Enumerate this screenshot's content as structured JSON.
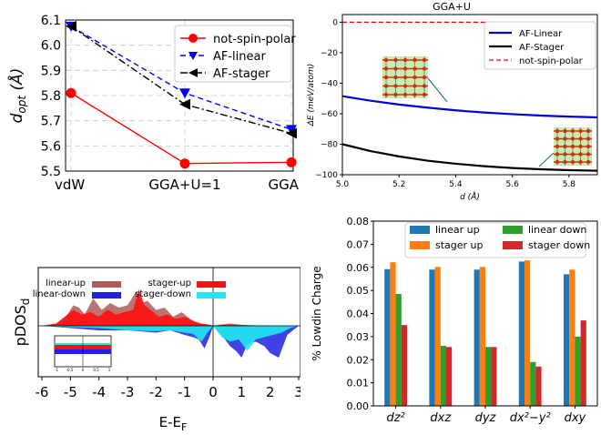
{
  "chart_data": [
    {
      "type": "line",
      "ylabel": "d_opt (Å)",
      "ylabel_main": "d",
      "ylabel_sub": "opt",
      "ylabel_unit": " (Å)",
      "categories": [
        "vdW",
        "GGA+U=1",
        "GGA"
      ],
      "ylim": [
        5.5,
        6.1
      ],
      "yticks": [
        "5.5",
        "5.6",
        "5.7",
        "5.8",
        "5.9",
        "6.0",
        "6.1"
      ],
      "grid": true,
      "legend_position": "upper-right",
      "series": [
        {
          "name": "not-spin-polar",
          "values": [
            5.81,
            5.53,
            5.535
          ],
          "color": "#ff0000",
          "marker": "circle",
          "dash": "solid"
        },
        {
          "name": "AF-linear",
          "values": [
            6.075,
            5.81,
            5.665
          ],
          "color": "#0000ff",
          "marker": "triangle-down",
          "dash": "dashed"
        },
        {
          "name": "AF-stager",
          "values": [
            6.075,
            5.765,
            5.65
          ],
          "color": "#000000",
          "marker": "triangle-left",
          "dash": "dashdot"
        }
      ]
    },
    {
      "type": "line",
      "title": "GGA+U",
      "xlabel": "d (Å)",
      "ylabel": "ΔE (meV/atom)",
      "xlim": [
        5.0,
        5.9
      ],
      "ylim": [
        -100,
        5
      ],
      "xticks": [
        "5.0",
        "5.2",
        "5.4",
        "5.6",
        "5.8"
      ],
      "yticks": [
        "0",
        "−20",
        "−40",
        "−60",
        "−80",
        "−100"
      ],
      "legend_position": "upper-right",
      "series": [
        {
          "name": "AF-Linear",
          "color": "#0000dd",
          "x": [
            5.0,
            5.1,
            5.2,
            5.3,
            5.4,
            5.5,
            5.6,
            5.7,
            5.8,
            5.9
          ],
          "values": [
            -48.5,
            -51.5,
            -54.0,
            -56.0,
            -57.8,
            -59.2,
            -60.3,
            -61.2,
            -61.9,
            -62.4
          ]
        },
        {
          "name": "AF-Stager",
          "color": "#000000",
          "x": [
            5.0,
            5.1,
            5.2,
            5.3,
            5.4,
            5.5,
            5.6,
            5.7,
            5.8,
            5.9
          ],
          "values": [
            -80.0,
            -84.5,
            -88.0,
            -90.8,
            -92.8,
            -94.4,
            -95.6,
            -96.4,
            -97.0,
            -97.4
          ]
        },
        {
          "name": "not-spin-polar",
          "color": "#ff0000",
          "dash": "dashed",
          "x": [
            5.0,
            5.9
          ],
          "values": [
            0,
            0
          ]
        }
      ]
    },
    {
      "type": "area",
      "xlabel": "E-E_F",
      "xlabel_main": "E-E",
      "xlabel_sub": "F",
      "ylabel": "pDOS_d",
      "ylabel_main": "pDOS",
      "ylabel_sub": "d",
      "xlim": [
        -6,
        3
      ],
      "xticks": [
        "-6",
        "-5",
        "-4",
        "-3",
        "-2",
        "-1",
        "0",
        "1",
        "2",
        "3"
      ],
      "inset_ticks": [
        "-1",
        "-0.5",
        "0",
        "0.5",
        "1"
      ],
      "legend_position": "upper",
      "series": [
        {
          "name": "linear-up",
          "color": "#b05a5a",
          "x": [
            -6,
            -5.5,
            -5.2,
            -4.9,
            -4.7,
            -4.5,
            -4.2,
            -3.9,
            -3.6,
            -3.3,
            -3.0,
            -2.7,
            -2.5,
            -2.3,
            -2.0,
            -1.7,
            -1.4,
            -1.1,
            -0.8,
            -0.5,
            -0.2,
            0,
            0.3,
            0.6,
            1.0,
            1.5,
            2.0,
            2.5,
            3.0
          ],
          "values": [
            0,
            0.05,
            0.15,
            0.45,
            0.4,
            0.25,
            0.6,
            0.35,
            0.5,
            0.4,
            0.45,
            0.75,
            0.5,
            0.55,
            0.35,
            0.4,
            0.2,
            0.3,
            0.15,
            0.05,
            0.02,
            0,
            0.03,
            0.05,
            0.02,
            0.01,
            0,
            0,
            0
          ]
        },
        {
          "name": "stager-up",
          "color": "#ff1010",
          "x": [
            -6,
            -5.5,
            -5.2,
            -4.9,
            -4.6,
            -4.3,
            -4.0,
            -3.7,
            -3.4,
            -3.1,
            -2.8,
            -2.6,
            -2.4,
            -2.2,
            -1.9,
            -1.6,
            -1.3,
            -1.0,
            -0.7,
            -0.4,
            -0.1,
            0,
            0.3,
            0.6,
            1.0,
            1.5,
            2.0,
            2.5,
            3.0
          ],
          "values": [
            0,
            0.05,
            0.2,
            0.35,
            0.25,
            0.3,
            0.2,
            0.35,
            0.25,
            0.3,
            0.35,
            0.8,
            0.45,
            0.35,
            0.2,
            0.25,
            0.15,
            0.2,
            0.1,
            0.05,
            0.02,
            0,
            0.02,
            0.03,
            0.02,
            0,
            0,
            0,
            0
          ]
        },
        {
          "name": "linear-down",
          "color": "#2020e0",
          "x": [
            -6,
            -5.0,
            -4.0,
            -3.0,
            -2.0,
            -1.5,
            -1.0,
            -0.7,
            -0.5,
            -0.3,
            -0.1,
            0,
            0.3,
            0.6,
            0.8,
            1.0,
            1.2,
            1.5,
            1.8,
            2.0,
            2.3,
            2.6,
            3.0
          ],
          "values": [
            0,
            -0.05,
            -0.1,
            -0.1,
            -0.15,
            -0.1,
            -0.2,
            -0.25,
            -0.3,
            -0.5,
            -0.2,
            0,
            -0.2,
            -0.45,
            -0.55,
            -0.7,
            -0.4,
            -0.35,
            -0.45,
            -0.6,
            -0.7,
            -0.2,
            0
          ]
        },
        {
          "name": "stager-down",
          "color": "#20e8f0",
          "x": [
            -6,
            -5.0,
            -4.0,
            -3.0,
            -2.0,
            -1.5,
            -1.0,
            -0.7,
            -0.4,
            -0.2,
            0,
            0.3,
            0.6,
            0.9,
            1.2,
            1.5,
            1.8,
            2.1,
            2.4,
            2.7,
            3.0
          ],
          "values": [
            0,
            -0.03,
            -0.05,
            -0.1,
            -0.12,
            -0.1,
            -0.15,
            -0.18,
            -0.35,
            -0.15,
            0,
            -0.25,
            -0.35,
            -0.3,
            -0.55,
            -0.3,
            -0.25,
            -0.2,
            -0.15,
            -0.05,
            0
          ]
        }
      ]
    },
    {
      "type": "bar",
      "ylabel": "% Lowdin Charge",
      "categories": [
        "dz²",
        "dxz",
        "dyz",
        "dx²−y²",
        "dxy"
      ],
      "ylim": [
        0,
        0.08
      ],
      "yticks": [
        "0.00",
        "0.01",
        "0.02",
        "0.03",
        "0.04",
        "0.05",
        "0.06",
        "0.07",
        "0.08"
      ],
      "legend_position": "upper",
      "series": [
        {
          "name": "linear up",
          "color": "#1f77b4",
          "values": [
            0.0592,
            0.059,
            0.059,
            0.0625,
            0.057
          ]
        },
        {
          "name": "stager up",
          "color": "#ff7f0e",
          "values": [
            0.0622,
            0.0602,
            0.0602,
            0.063,
            0.059
          ]
        },
        {
          "name": "linear down",
          "color": "#2ca02c",
          "values": [
            0.0485,
            0.026,
            0.0255,
            0.019,
            0.03
          ]
        },
        {
          "name": "stager down",
          "color": "#d62728",
          "values": [
            0.035,
            0.0255,
            0.0255,
            0.017,
            0.037
          ]
        }
      ]
    }
  ]
}
